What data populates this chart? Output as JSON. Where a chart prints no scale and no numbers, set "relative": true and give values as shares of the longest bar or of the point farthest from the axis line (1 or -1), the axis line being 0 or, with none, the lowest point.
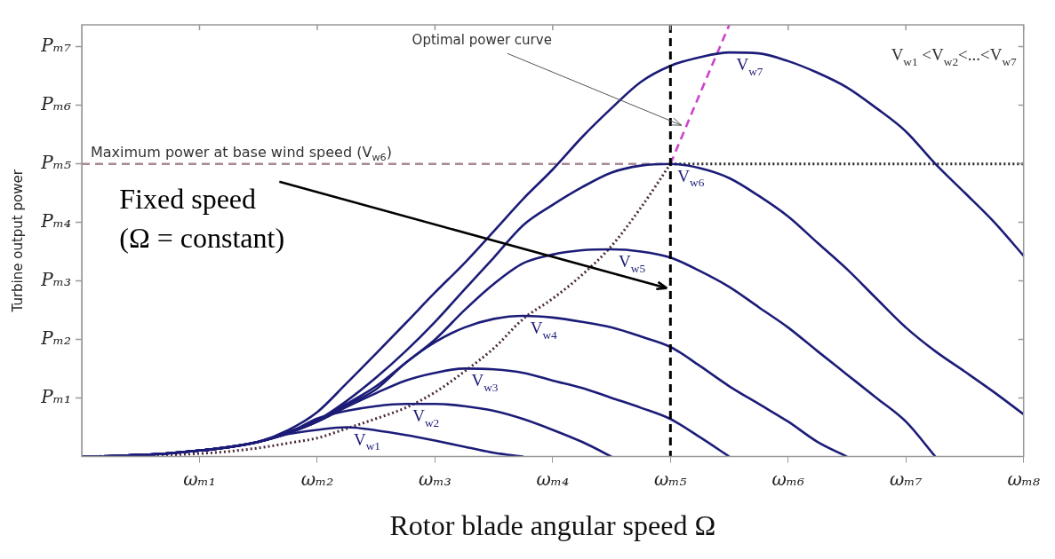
{
  "chart_data": {
    "type": "line",
    "relative": true,
    "xlabel": "Rotor blade angular speed Ω",
    "ylabel": "Turbine output power",
    "categories": [
      null,
      null,
      null,
      null,
      "ωₘ₁",
      null,
      null,
      null,
      "ωₘ₂",
      null,
      null,
      null,
      "ωₘ₃",
      null,
      null,
      null,
      "ωₘ₄",
      null,
      null,
      null,
      "ωₘ₅",
      null,
      null,
      null,
      "ωₘ₆",
      null,
      null,
      null,
      "ωₘ₇",
      null,
      null,
      null,
      "ωₘ₈"
    ],
    "grid": false,
    "legend": false,
    "marker": "none",
    "line_style": "solid",
    "series": [
      {
        "name": "V$_{w1}$",
        "color": "#1c1c78",
        "values": [
          0,
          0.001,
          0.004,
          0.008,
          0.014,
          0.022,
          0.034,
          0.052,
          0.062,
          0.068,
          0.061,
          0.05,
          0.037,
          0.023,
          0.009,
          0,
          null,
          null,
          null,
          null,
          null,
          null,
          null,
          null,
          null,
          null,
          null,
          null,
          null,
          null,
          null,
          null,
          null
        ]
      },
      {
        "name": "V$_{w2}$",
        "color": "#1c1c78",
        "values": [
          0,
          0.001,
          0.004,
          0.008,
          0.014,
          0.022,
          0.034,
          0.054,
          0.088,
          0.106,
          0.117,
          0.122,
          0.122,
          0.117,
          0.106,
          0.087,
          0.062,
          0.034,
          0,
          null,
          null,
          null,
          null,
          null,
          null,
          null,
          null,
          null,
          null,
          null,
          null,
          null,
          null
        ]
      },
      {
        "name": "V$_{w3}$",
        "color": "#1c1c78",
        "values": [
          0,
          0.001,
          0.004,
          0.008,
          0.014,
          0.022,
          0.034,
          0.054,
          0.081,
          0.115,
          0.147,
          0.176,
          0.194,
          0.204,
          0.202,
          0.194,
          0.176,
          0.159,
          0.136,
          0.113,
          0.087,
          0.045,
          0,
          null,
          null,
          null,
          null,
          null,
          null,
          null,
          null,
          null,
          null
        ]
      },
      {
        "name": "V$_{w4}$",
        "color": "#1c1c78",
        "values": [
          0,
          0.001,
          0.004,
          0.008,
          0.014,
          0.022,
          0.034,
          0.054,
          0.081,
          0.119,
          0.156,
          0.217,
          0.265,
          0.299,
          0.319,
          0.326,
          0.322,
          0.312,
          0.299,
          0.278,
          0.254,
          0.21,
          0.163,
          0.122,
          0.081,
          0.034,
          0,
          null,
          null,
          null,
          null,
          null,
          null
        ]
      },
      {
        "name": "V$_{w5}$",
        "color": "#1c1c78",
        "values": [
          0,
          0.001,
          0.004,
          0.008,
          0.014,
          0.022,
          0.034,
          0.054,
          0.081,
          0.122,
          0.163,
          0.217,
          0.271,
          0.339,
          0.4,
          0.448,
          0.468,
          0.478,
          0.48,
          0.475,
          0.461,
          0.43,
          0.393,
          0.346,
          0.299,
          0.244,
          0.19,
          0.136,
          0.081,
          0,
          null,
          null,
          null
        ]
      },
      {
        "name": "V$_{w6}$",
        "color": "#1c1c78",
        "values": [
          0,
          0.001,
          0.004,
          0.008,
          0.014,
          0.022,
          0.034,
          0.057,
          0.084,
          0.129,
          0.183,
          0.244,
          0.312,
          0.387,
          0.461,
          0.536,
          0.583,
          0.624,
          0.658,
          0.674,
          0.678,
          0.668,
          0.645,
          0.604,
          0.556,
          0.495,
          0.434,
          0.366,
          0.299,
          0.244,
          0.197,
          0.149,
          0.098
        ]
      },
      {
        "name": "V$_{w7}$",
        "color": "#1c1c78",
        "values": [
          0,
          0.001,
          0.004,
          0.008,
          0.014,
          0.022,
          0.034,
          0.061,
          0.103,
          0.17,
          0.239,
          0.309,
          0.38,
          0.448,
          0.522,
          0.597,
          0.665,
          0.74,
          0.807,
          0.868,
          0.905,
          0.925,
          0.936,
          0.934,
          0.916,
          0.889,
          0.855,
          0.807,
          0.753,
          0.678,
          0.611,
          0.543,
          0.465
        ]
      },
      {
        "color": "#4a2a3a",
        "line_style": "dotted",
        "values": [
          0,
          0.001,
          0.003,
          0.004,
          0.007,
          0.012,
          0.02,
          0.031,
          0.043,
          0.065,
          0.088,
          0.113,
          0.149,
          0.197,
          0.251,
          0.319,
          0.366,
          0.421,
          0.488,
          0.577,
          0.678,
          null,
          null,
          null,
          null,
          null,
          null,
          null,
          null,
          null,
          null,
          null,
          null
        ]
      },
      {
        "name": "Optimal power curve",
        "color": "#cc44cc",
        "line_style": "dashed",
        "values": [
          null,
          null,
          null,
          null,
          null,
          null,
          null,
          null,
          null,
          null,
          null,
          null,
          null,
          null,
          null,
          null,
          null,
          null,
          null,
          null,
          0.678,
          0.84,
          1,
          null,
          null,
          null,
          null,
          null,
          null,
          null,
          null,
          null,
          null
        ]
      },
      {
        "color": "#a88898",
        "line_style": "dashed",
        "values": [
          0.678,
          0.678,
          0.678,
          0.678,
          0.678,
          0.678,
          0.678,
          0.678,
          0.678,
          0.678,
          0.678,
          0.678,
          0.678,
          0.678,
          0.678,
          0.678,
          0.678,
          0.678,
          0.678,
          0.678,
          0.678,
          null,
          null,
          null,
          null,
          null,
          null,
          null,
          null,
          null,
          null,
          null,
          null
        ]
      },
      {
        "color": "#222222",
        "line_style": "dotted",
        "values": [
          null,
          null,
          null,
          null,
          null,
          null,
          null,
          null,
          null,
          null,
          null,
          null,
          null,
          null,
          null,
          null,
          null,
          null,
          null,
          null,
          0.678,
          0.678,
          0.678,
          0.678,
          0.678,
          0.678,
          0.678,
          0.678,
          0.678,
          0.678,
          0.678,
          0.678,
          0.678
        ]
      }
    ],
    "ref_lines": [
      {
        "axis": "x",
        "value": "ωₘ₅",
        "color": "#000000",
        "line_style": "dashed"
      }
    ],
    "annotations": [
      "Pₘ₁",
      "Pₘ₂",
      "Pₘ₃",
      "Pₘ₄",
      "Pₘ₅",
      "Pₘ₆",
      "Pₘ₇",
      {
        "text": "Fixed speed\n(Ω = constant)",
        "x": "ωₘ₅",
        "y": 0.39
      },
      "Maximum power at base wind speed (V$_{w6}$)",
      "V$_{w1}$ <V$_{w2}$<...<V$_{w7}$"
    ]
  }
}
